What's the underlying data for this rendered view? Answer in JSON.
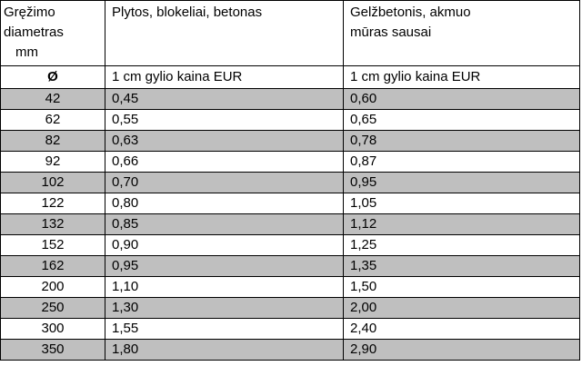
{
  "header": {
    "diameter_label_line1": "Gręžimo",
    "diameter_label_line2": "diametras",
    "diameter_label_line3": "mm",
    "col2_title": "Plytos, blokeliai, betonas",
    "col3_title": "Gelžbetonis, akmuo mūras sausai"
  },
  "subheader": {
    "symbol": "Ø",
    "col2_unit": "1 cm gylio kaina EUR",
    "col3_unit": "1 cm gylio kaina EUR"
  },
  "rows": [
    {
      "diameter": "42",
      "brick": "0,45",
      "concrete": "0,60"
    },
    {
      "diameter": "62",
      "brick": "0,55",
      "concrete": "0,65"
    },
    {
      "diameter": "82",
      "brick": "0,63",
      "concrete": "0,78"
    },
    {
      "diameter": "92",
      "brick": "0,66",
      "concrete": "0,87"
    },
    {
      "diameter": "102",
      "brick": "0,70",
      "concrete": "0,95"
    },
    {
      "diameter": "122",
      "brick": "0,80",
      "concrete": "1,05"
    },
    {
      "diameter": "132",
      "brick": "0,85",
      "concrete": "1,12"
    },
    {
      "diameter": "152",
      "brick": "0,90",
      "concrete": "1,25"
    },
    {
      "diameter": "162",
      "brick": "0,95",
      "concrete": "1,35"
    },
    {
      "diameter": "200",
      "brick": "1,10",
      "concrete": "1,50"
    },
    {
      "diameter": "250",
      "brick": "1,30",
      "concrete": "2,00"
    },
    {
      "diameter": "300",
      "brick": "1,55",
      "concrete": "2,40"
    },
    {
      "diameter": "350",
      "brick": "1,80",
      "concrete": "2,90"
    }
  ],
  "colors": {
    "row_shade": "#bfbfbf",
    "border": "#000000"
  }
}
